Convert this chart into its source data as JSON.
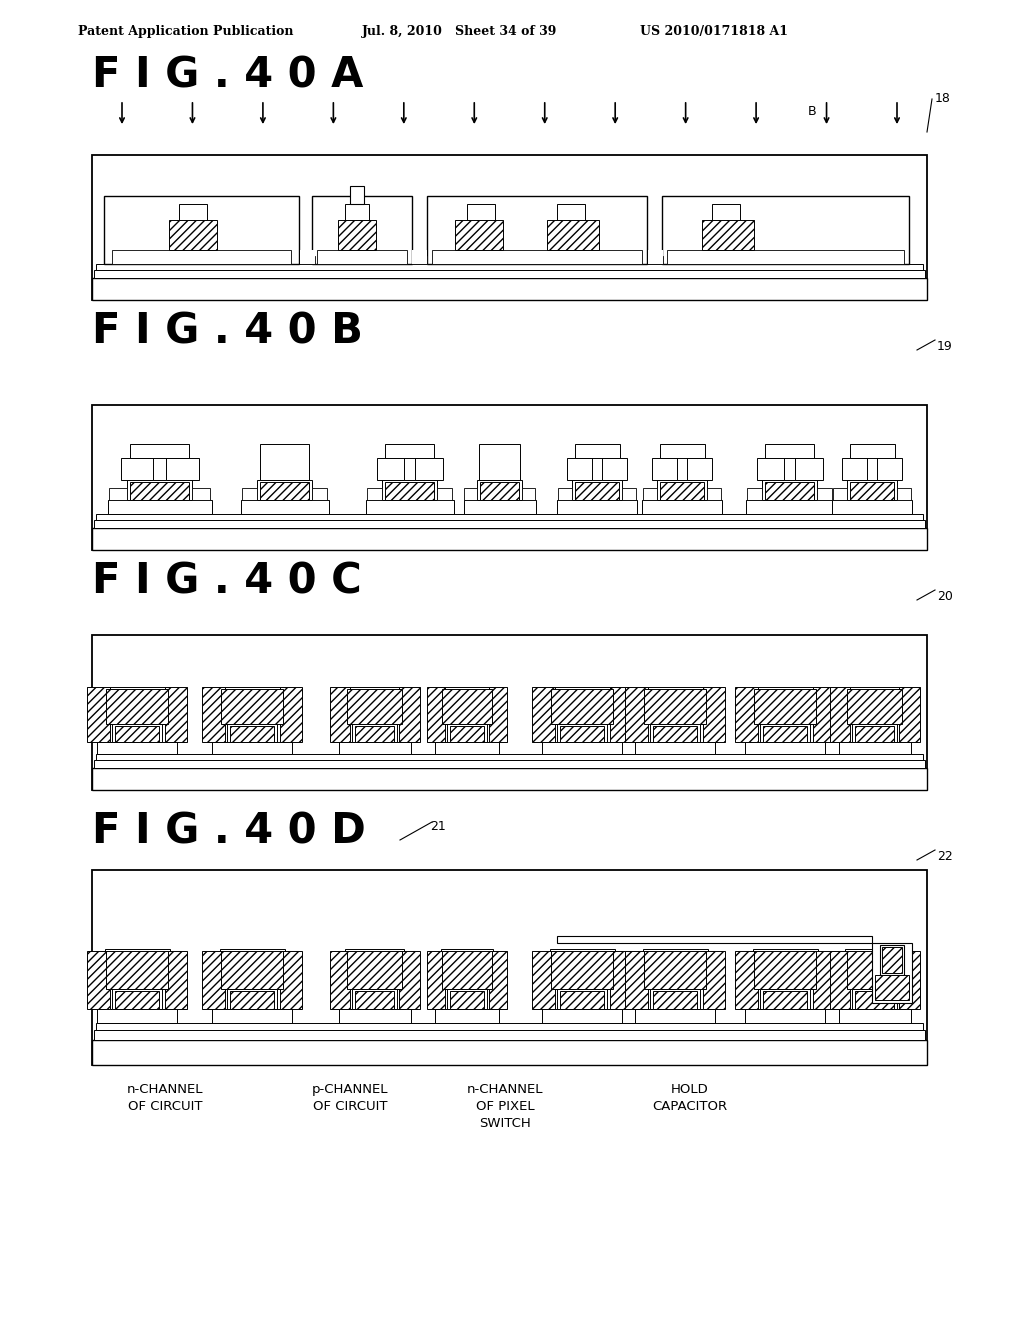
{
  "bg_color": "#ffffff",
  "header_left": "Patent Application Publication",
  "header_mid": "Jul. 8, 2010   Sheet 34 of 39",
  "header_right": "US 2010/0171818 A1",
  "fig_titles": [
    "F I G . 4 0 A",
    "F I G . 4 0 B",
    "F I G . 4 0 C",
    "F I G . 4 0 D"
  ],
  "fig_titles_short": [
    "FIG. 40A",
    "FIG. 40B",
    "FIG. 40C",
    "FIG. 40D"
  ],
  "ref_18": "18",
  "ref_19": "19",
  "ref_20": "20",
  "ref_21": "21",
  "ref_22": "22",
  "label_B": "B",
  "bottom_label1": "n - C H A N N E L\n O F  C I R C U I T",
  "bottom_label2": "p - C H A N N E L\nO F  C I R C U I T",
  "bottom_label3": "n - C H A N N E L\nO F  P I X E L\nS W I T C H",
  "bottom_label4": "H O L D\nC A P A C I T O R"
}
